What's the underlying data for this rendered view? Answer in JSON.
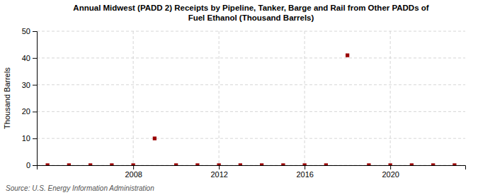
{
  "chart_data": {
    "type": "scatter",
    "title": "Annual Midwest (PADD 2) Receipts by Pipeline, Tanker, Barge and Rail from Other PADDs of\nFuel Ethanol (Thousand Barrels)",
    "y_label": "Thousand Barrels",
    "annotations": [
      "Source: U.S. Energy Information Administration"
    ],
    "x": [
      2004,
      2005,
      2006,
      2007,
      2008,
      2009,
      2010,
      2011,
      2012,
      2013,
      2014,
      2015,
      2016,
      2017,
      2018,
      2019,
      2020,
      2021,
      2022,
      2023
    ],
    "values": [
      0,
      0,
      0,
      0,
      0,
      10,
      0,
      0,
      0,
      0,
      0,
      0,
      0,
      0,
      41,
      0,
      0,
      0,
      0,
      0
    ],
    "color": "#990000",
    "marker": "square",
    "xlim": [
      2003.5,
      2023.5
    ],
    "ylim": [
      0,
      50
    ],
    "xticks": [
      2008,
      2012,
      2016,
      2020
    ],
    "yticks": [
      0,
      10,
      20,
      30,
      40,
      50
    ],
    "grid": true
  }
}
